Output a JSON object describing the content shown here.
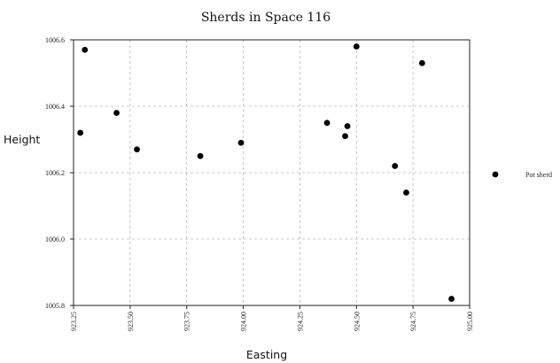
{
  "chart_data": {
    "type": "scatter",
    "title": "Sherds in Space 116",
    "xlabel": "Easting",
    "ylabel": "Height",
    "xlim": [
      923.25,
      925.0
    ],
    "ylim": [
      1005.8,
      1006.6
    ],
    "xticks": [
      923.25,
      923.5,
      923.75,
      924.0,
      924.25,
      924.5,
      924.75,
      925.0
    ],
    "xtick_labels": [
      "923.25",
      "923.50",
      "923.75",
      "924.00",
      "924.25",
      "924.50",
      "924.75",
      "925.00"
    ],
    "yticks": [
      1005.8,
      1006.0,
      1006.2,
      1006.4,
      1006.6
    ],
    "ytick_labels": [
      "1005.8",
      "1006.0",
      "1006.2",
      "1006.4",
      "1006.6"
    ],
    "grid": true,
    "legend_position": "right",
    "series": [
      {
        "name": "Pot sherd",
        "color": "#000000",
        "marker": "circle",
        "points": [
          {
            "x": 923.28,
            "y": 1006.32
          },
          {
            "x": 923.3,
            "y": 1006.57
          },
          {
            "x": 923.44,
            "y": 1006.38
          },
          {
            "x": 923.53,
            "y": 1006.27
          },
          {
            "x": 923.81,
            "y": 1006.25
          },
          {
            "x": 923.99,
            "y": 1006.29
          },
          {
            "x": 924.37,
            "y": 1006.35
          },
          {
            "x": 924.45,
            "y": 1006.31
          },
          {
            "x": 924.46,
            "y": 1006.34
          },
          {
            "x": 924.5,
            "y": 1006.58
          },
          {
            "x": 924.67,
            "y": 1006.22
          },
          {
            "x": 924.72,
            "y": 1006.14
          },
          {
            "x": 924.79,
            "y": 1006.53
          },
          {
            "x": 924.92,
            "y": 1005.82
          }
        ]
      }
    ]
  }
}
